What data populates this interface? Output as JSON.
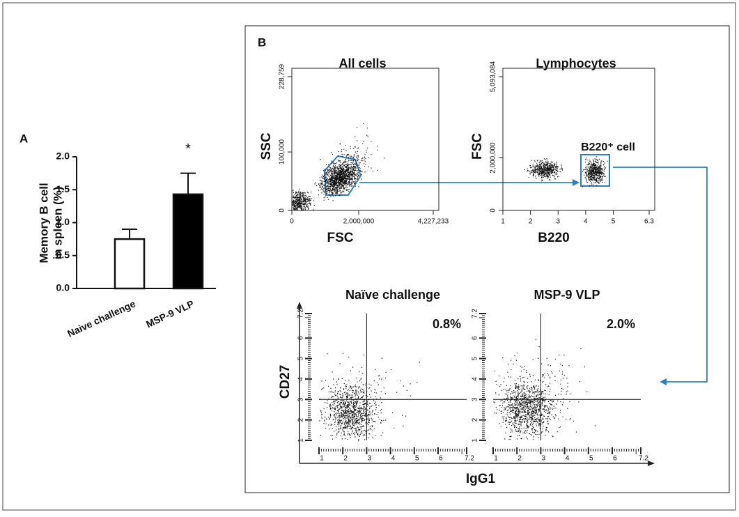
{
  "panel_labels": [
    "A",
    "B"
  ],
  "chart_data": [
    {
      "type": "bar",
      "y_label": [
        "Memory B cell",
        "in spleen (%)"
      ],
      "categories": [
        "Naive challenge",
        "MSP-9 VLP"
      ],
      "values": [
        0.75,
        1.43
      ],
      "errors": [
        0.15,
        0.32
      ],
      "colors": [
        "#ffffff",
        "#000000"
      ],
      "significance": [
        null,
        "*"
      ],
      "ylim": [
        0,
        2
      ],
      "yticks": [
        {
          "value": 0,
          "label": "0.0"
        },
        {
          "value": 0.5,
          "label": "0.5"
        },
        {
          "value": 1,
          "label": "1.0"
        },
        {
          "value": 1.5,
          "label": "1.5"
        },
        {
          "value": 2,
          "label": "2.0"
        }
      ]
    },
    {
      "type": "scatter",
      "title": "All cells",
      "x_label": "FSC",
      "y_label": "SSC",
      "xlim": [
        0,
        4227233
      ],
      "xticks": [
        0,
        {
          "value": 2000000,
          "label": "2,000,000"
        },
        {
          "value": 4227233,
          "label": "4,227,233"
        }
      ],
      "ylim": [
        0,
        228759
      ],
      "yticks": [
        0,
        {
          "value": 100000,
          "label": "100,000"
        },
        {
          "value": 228759,
          "label": "228,759"
        }
      ]
    },
    {
      "type": "scatter",
      "title": "Lymphocytes",
      "x_label": "B220",
      "y_label": "FSC",
      "gate_label": "B220⁺ cell",
      "xlim": [
        1,
        6.3
      ],
      "xticks": [
        1,
        2,
        3,
        4,
        5,
        6.3
      ],
      "ylim": [
        0,
        5093084
      ],
      "yticks": [
        0,
        {
          "value": 2000000,
          "label": "2,000,000"
        },
        {
          "value": 5093084,
          "label": "5,093,084"
        }
      ]
    },
    {
      "type": "scatter",
      "title": "Naïve challenge",
      "x_label": "IgG1",
      "y_label": "CD27",
      "annotation": "0.8%",
      "annotation_color": "#222222",
      "xlim": [
        1,
        7.2
      ],
      "xticks": [
        1,
        2,
        3,
        4,
        5,
        6,
        7.2
      ],
      "ylim": [
        1,
        7.2
      ],
      "yticks": [
        1,
        2,
        3,
        4,
        5,
        6,
        7.2
      ],
      "quadrant": [
        3,
        3
      ]
    },
    {
      "type": "scatter",
      "title": "MSP-9 VLP",
      "annotation": "2.0%",
      "annotation_color": "#c0282d",
      "xlim": [
        1,
        7.2
      ],
      "xticks": [
        1,
        2,
        3,
        4,
        5,
        6,
        7.2
      ],
      "ylim": [
        1,
        7.2
      ],
      "yticks": [
        1,
        2,
        3,
        4,
        5,
        6,
        7.2
      ],
      "quadrant": [
        3,
        3
      ]
    }
  ]
}
